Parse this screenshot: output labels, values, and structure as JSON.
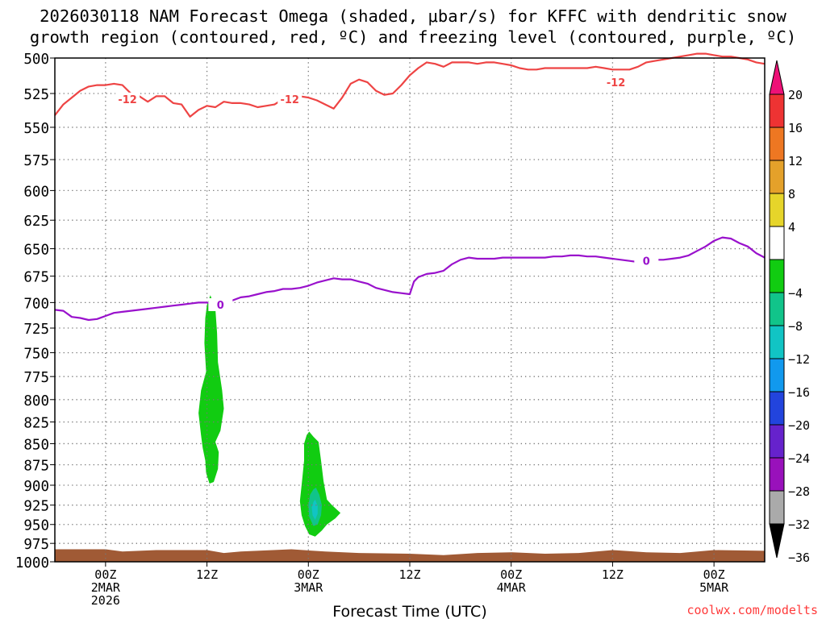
{
  "title": {
    "line1": "2026030118 NAM Forecast Omega (shaded, μbar/s) for KFFC with dendritic snow",
    "line2": "growth region (contoured, red, ºC) and freezing level (contoured, purple, ºC)"
  },
  "credit": "coolwx.com/modelts",
  "chart_data": {
    "type": "time-height cross section",
    "xlabel": "Forecast Time (UTC)",
    "ylabel": "",
    "x_unit": "hours since 2026-03-01 18Z",
    "xlim": [
      0,
      84
    ],
    "ylim": [
      1000,
      500
    ],
    "y_scale": "log-pressure",
    "grid": true,
    "y_ticks": [
      500,
      525,
      550,
      575,
      600,
      625,
      650,
      675,
      700,
      725,
      750,
      775,
      800,
      825,
      850,
      875,
      900,
      925,
      950,
      975,
      1000
    ],
    "x_ticks": [
      {
        "hour": 6,
        "lines": [
          "00Z",
          "2MAR",
          "2026"
        ]
      },
      {
        "hour": 18,
        "lines": [
          "12Z"
        ]
      },
      {
        "hour": 30,
        "lines": [
          "00Z",
          "3MAR"
        ]
      },
      {
        "hour": 42,
        "lines": [
          "12Z"
        ]
      },
      {
        "hour": 54,
        "lines": [
          "00Z",
          "4MAR"
        ]
      },
      {
        "hour": 66,
        "lines": [
          "12Z"
        ]
      },
      {
        "hour": 78,
        "lines": [
          "00Z",
          "5MAR"
        ]
      }
    ],
    "colorbar": {
      "label_values": [
        20,
        16,
        12,
        8,
        4,
        -4,
        -8,
        -12,
        -16,
        -20,
        -24,
        -28,
        -32,
        -36
      ],
      "bins": [
        {
          "lo": 16,
          "hi": 20,
          "color": "#ee3333"
        },
        {
          "lo": 12,
          "hi": 16,
          "color": "#ee7722"
        },
        {
          "lo": 8,
          "hi": 12,
          "color": "#e4a12a"
        },
        {
          "lo": 4,
          "hi": 8,
          "color": "#e6d52a"
        },
        {
          "lo": -4,
          "hi": 4,
          "color": "#ffffff"
        },
        {
          "lo": -8,
          "hi": -4,
          "color": "#11cc11"
        },
        {
          "lo": -12,
          "hi": -8,
          "color": "#11c48a"
        },
        {
          "lo": -16,
          "hi": -12,
          "color": "#11c4c4"
        },
        {
          "lo": -20,
          "hi": -16,
          "color": "#1199ee"
        },
        {
          "lo": -24,
          "hi": -20,
          "color": "#2244dd"
        },
        {
          "lo": -28,
          "hi": -24,
          "color": "#6622cc"
        },
        {
          "lo": -32,
          "hi": -28,
          "color": "#9911bb"
        },
        {
          "lo": -36,
          "hi": -32,
          "color": "#aaaaaa"
        }
      ],
      "over_color": "#ee1177",
      "under_color": "#000000"
    },
    "series": [
      {
        "name": "-12C isotherm (dendritic growth)",
        "color": "#ee4444",
        "label": "-12",
        "label_points": [
          [
            8.6,
            529
          ],
          [
            27.8,
            529
          ],
          [
            66.4,
            517
          ]
        ],
        "points": [
          [
            0,
            541
          ],
          [
            1,
            533
          ],
          [
            2,
            528
          ],
          [
            3,
            523
          ],
          [
            4,
            520
          ],
          [
            5,
            519
          ],
          [
            6,
            519
          ],
          [
            7,
            518
          ],
          [
            8,
            519
          ],
          [
            9,
            525
          ],
          [
            10,
            527
          ],
          [
            11,
            531
          ],
          [
            12,
            527
          ],
          [
            13,
            527
          ],
          [
            14,
            532
          ],
          [
            15,
            533
          ],
          [
            16,
            542
          ],
          [
            17,
            537
          ],
          [
            18,
            534
          ],
          [
            19,
            535
          ],
          [
            20,
            531
          ],
          [
            21,
            532
          ],
          [
            22,
            532
          ],
          [
            23,
            533
          ],
          [
            24,
            535
          ],
          [
            25,
            534
          ],
          [
            26,
            533
          ],
          [
            27,
            529
          ],
          [
            28,
            528
          ],
          [
            29,
            527
          ],
          [
            30,
            528
          ],
          [
            31,
            530
          ],
          [
            32,
            533
          ],
          [
            33,
            536
          ],
          [
            34,
            528
          ],
          [
            35,
            518
          ],
          [
            36,
            515
          ],
          [
            37,
            517
          ],
          [
            38,
            523
          ],
          [
            39,
            526
          ],
          [
            40,
            525
          ],
          [
            41,
            519
          ],
          [
            42,
            512
          ],
          [
            43,
            507
          ],
          [
            44,
            503
          ],
          [
            45,
            504
          ],
          [
            46,
            506
          ],
          [
            47,
            503
          ],
          [
            48,
            503
          ],
          [
            49,
            503
          ],
          [
            50,
            504
          ],
          [
            51,
            503
          ],
          [
            52,
            503
          ],
          [
            53,
            504
          ],
          [
            54,
            505
          ],
          [
            55,
            507
          ],
          [
            56,
            508
          ],
          [
            57,
            508
          ],
          [
            58,
            507
          ],
          [
            59,
            507
          ],
          [
            60,
            507
          ],
          [
            61,
            507
          ],
          [
            62,
            507
          ],
          [
            63,
            507
          ],
          [
            64,
            506
          ],
          [
            65,
            507
          ],
          [
            66,
            508
          ],
          [
            67,
            508
          ],
          [
            68,
            508
          ],
          [
            69,
            506
          ],
          [
            70,
            503
          ],
          [
            71,
            502
          ],
          [
            72,
            501
          ],
          [
            73,
            500
          ],
          [
            74,
            499
          ],
          [
            75,
            498
          ],
          [
            76,
            497
          ],
          [
            77,
            497
          ],
          [
            78,
            498
          ],
          [
            79,
            499
          ],
          [
            80,
            499
          ],
          [
            81,
            500
          ],
          [
            82,
            501
          ],
          [
            83,
            503
          ],
          [
            84,
            504
          ]
        ]
      },
      {
        "name": "0C freezing level",
        "color": "#9911cc",
        "label": "0",
        "label_points": [
          [
            19.6,
            702
          ],
          [
            70.0,
            661
          ]
        ],
        "points": [
          [
            0,
            707
          ],
          [
            1,
            708
          ],
          [
            2,
            714
          ],
          [
            3,
            715
          ],
          [
            4,
            717
          ],
          [
            5,
            716
          ],
          [
            6,
            713
          ],
          [
            7,
            710
          ],
          [
            8,
            709
          ],
          [
            9,
            708
          ],
          [
            10,
            707
          ],
          [
            11,
            706
          ],
          [
            12,
            705
          ],
          [
            13,
            704
          ],
          [
            14,
            703
          ],
          [
            15,
            702
          ],
          [
            16,
            701
          ],
          [
            17,
            700
          ],
          [
            18,
            700
          ],
          [
            19,
            702
          ],
          [
            20,
            701
          ],
          [
            21,
            698
          ],
          [
            22,
            695
          ],
          [
            23,
            694
          ],
          [
            24,
            692
          ],
          [
            25,
            690
          ],
          [
            26,
            689
          ],
          [
            27,
            687
          ],
          [
            28,
            687
          ],
          [
            29,
            686
          ],
          [
            30,
            684
          ],
          [
            31,
            681
          ],
          [
            32,
            679
          ],
          [
            33,
            677
          ],
          [
            34,
            678
          ],
          [
            35,
            678
          ],
          [
            36,
            680
          ],
          [
            37,
            682
          ],
          [
            38,
            686
          ],
          [
            39,
            688
          ],
          [
            40,
            690
          ],
          [
            41,
            691
          ],
          [
            42,
            692
          ],
          [
            42.5,
            680
          ],
          [
            43,
            676
          ],
          [
            44,
            673
          ],
          [
            45,
            672
          ],
          [
            46,
            670
          ],
          [
            47,
            664
          ],
          [
            48,
            660
          ],
          [
            49,
            658
          ],
          [
            50,
            659
          ],
          [
            51,
            659
          ],
          [
            52,
            659
          ],
          [
            53,
            658
          ],
          [
            54,
            658
          ],
          [
            55,
            658
          ],
          [
            56,
            658
          ],
          [
            57,
            658
          ],
          [
            58,
            658
          ],
          [
            59,
            657
          ],
          [
            60,
            657
          ],
          [
            61,
            656
          ],
          [
            62,
            656
          ],
          [
            63,
            657
          ],
          [
            64,
            657
          ],
          [
            65,
            658
          ],
          [
            66,
            659
          ],
          [
            67,
            660
          ],
          [
            68,
            661
          ],
          [
            69,
            662
          ],
          [
            70,
            661
          ],
          [
            71,
            660
          ],
          [
            72,
            660
          ],
          [
            73,
            659
          ],
          [
            74,
            658
          ],
          [
            75,
            656
          ],
          [
            76,
            652
          ],
          [
            77,
            648
          ],
          [
            78,
            643
          ],
          [
            79,
            640
          ],
          [
            80,
            641
          ],
          [
            81,
            645
          ],
          [
            82,
            648
          ],
          [
            83,
            654
          ],
          [
            84,
            658
          ]
        ]
      }
    ],
    "shaded_regions": [
      {
        "name": "omega -4 to -8 near 12Z 2MAR",
        "color": "#11cc11",
        "points": [
          [
            18.4,
            693
          ],
          [
            19.0,
            706
          ],
          [
            19.2,
            730
          ],
          [
            19.3,
            760
          ],
          [
            19.8,
            790
          ],
          [
            20.0,
            810
          ],
          [
            19.6,
            835
          ],
          [
            19.0,
            848
          ],
          [
            19.4,
            860
          ],
          [
            19.3,
            880
          ],
          [
            18.8,
            896
          ],
          [
            18.3,
            898
          ],
          [
            17.9,
            885
          ],
          [
            17.8,
            870
          ],
          [
            17.5,
            855
          ],
          [
            17.3,
            840
          ],
          [
            17.0,
            815
          ],
          [
            17.3,
            790
          ],
          [
            17.9,
            770
          ],
          [
            17.7,
            740
          ],
          [
            17.8,
            715
          ],
          [
            18.0,
            702
          ]
        ]
      },
      {
        "name": "omega -4 to -8 near 00Z 3MAR",
        "color": "#11cc11",
        "points": [
          [
            30.1,
            836
          ],
          [
            30.6,
            842
          ],
          [
            31.2,
            848
          ],
          [
            31.5,
            870
          ],
          [
            31.8,
            895
          ],
          [
            32.2,
            918
          ],
          [
            32.8,
            925
          ],
          [
            33.8,
            935
          ],
          [
            33.2,
            942
          ],
          [
            32.2,
            950
          ],
          [
            31.6,
            958
          ],
          [
            30.8,
            966
          ],
          [
            30.1,
            963
          ],
          [
            29.6,
            952
          ],
          [
            29.2,
            938
          ],
          [
            29.0,
            920
          ],
          [
            29.2,
            900
          ],
          [
            29.5,
            870
          ],
          [
            29.5,
            850
          ],
          [
            29.8,
            840
          ]
        ]
      },
      {
        "name": "omega -8 to -12 core",
        "color": "#11c48a",
        "points": [
          [
            30.9,
            903
          ],
          [
            31.3,
            912
          ],
          [
            31.6,
            925
          ],
          [
            31.5,
            938
          ],
          [
            31.1,
            950
          ],
          [
            30.6,
            952
          ],
          [
            30.1,
            940
          ],
          [
            30.0,
            925
          ],
          [
            30.2,
            912
          ],
          [
            30.6,
            905
          ]
        ]
      },
      {
        "name": "omega -12 to -16 core",
        "color": "#11c4c4",
        "points": [
          [
            30.8,
            918
          ],
          [
            31.1,
            926
          ],
          [
            31.1,
            936
          ],
          [
            30.8,
            944
          ],
          [
            30.5,
            938
          ],
          [
            30.4,
            928
          ],
          [
            30.6,
            921
          ]
        ]
      }
    ],
    "surface": {
      "name": "terrain / surface pressure",
      "color": "#a05a35",
      "points": [
        [
          0,
          983
        ],
        [
          6,
          983
        ],
        [
          8,
          986
        ],
        [
          12,
          984
        ],
        [
          18,
          984
        ],
        [
          20,
          988
        ],
        [
          22,
          986
        ],
        [
          28,
          983
        ],
        [
          32,
          986
        ],
        [
          36,
          988
        ],
        [
          42,
          989
        ],
        [
          46,
          991
        ],
        [
          50,
          988
        ],
        [
          54,
          987
        ],
        [
          58,
          989
        ],
        [
          62,
          988
        ],
        [
          66,
          984
        ],
        [
          70,
          987
        ],
        [
          74,
          988
        ],
        [
          78,
          984
        ],
        [
          84,
          985
        ]
      ]
    }
  }
}
